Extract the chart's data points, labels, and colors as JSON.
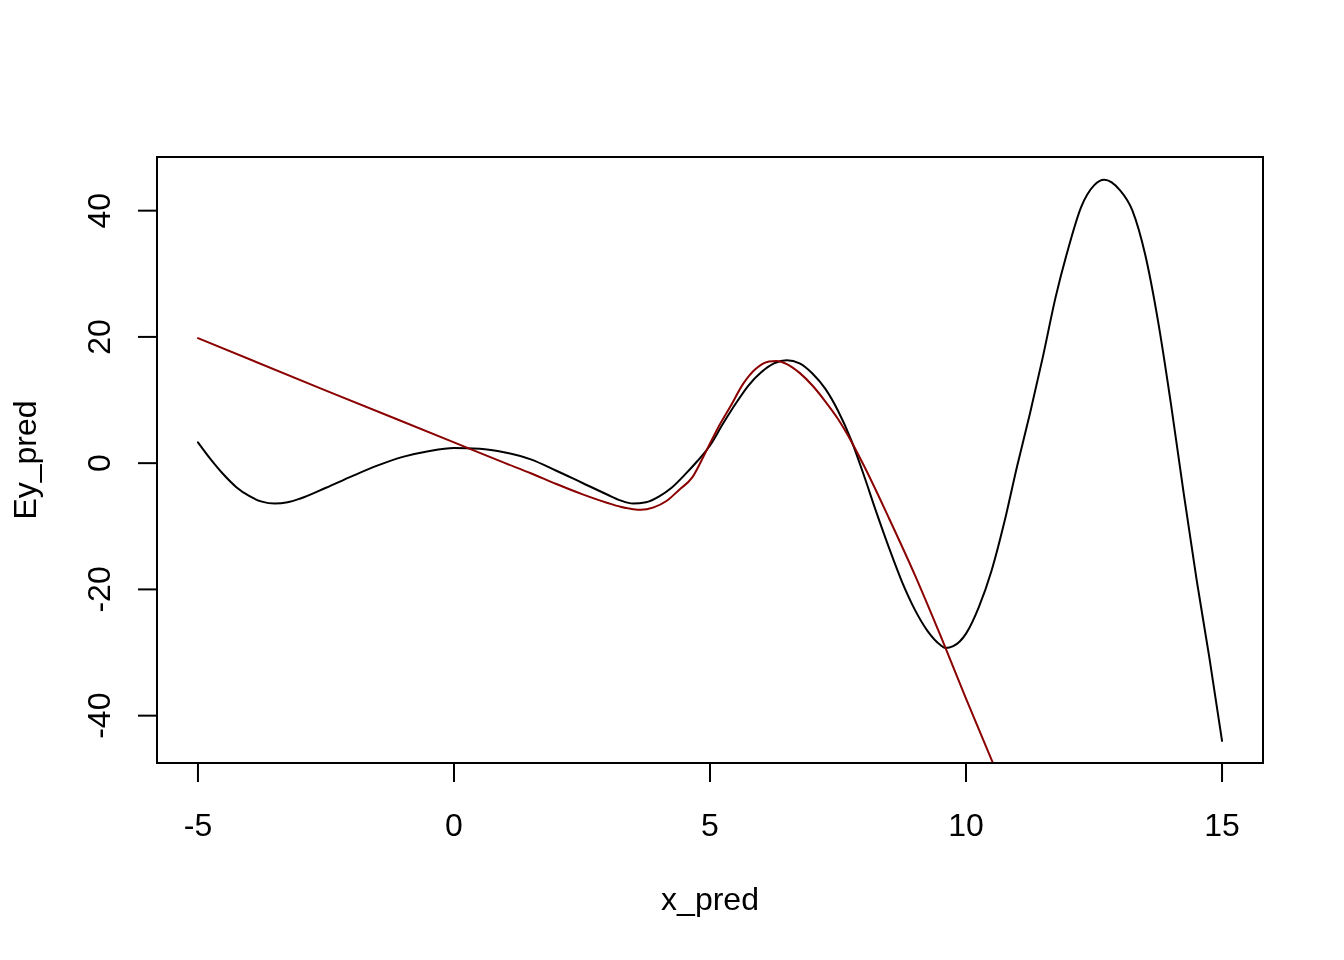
{
  "chart_data": {
    "type": "line",
    "xlabel": "x_pred",
    "ylabel": "Ey_pred",
    "xlim": [
      -5.8,
      15.8
    ],
    "ylim": [
      -47.5,
      48.5
    ],
    "xticks": [
      -5,
      0,
      5,
      10,
      15
    ],
    "yticks": [
      -40,
      -20,
      0,
      20,
      40
    ],
    "series": [
      {
        "color": "#000000",
        "x": [
          -5,
          -4.75,
          -4.5,
          -4.25,
          -4,
          -3.75,
          -3.5,
          -3.25,
          -3,
          -2.5,
          -2,
          -1.5,
          -1,
          -0.5,
          0,
          0.5,
          1,
          1.5,
          2,
          2.5,
          3,
          3.25,
          3.5,
          3.75,
          4,
          4.25,
          4.5,
          4.75,
          5,
          5.25,
          5.5,
          5.75,
          6,
          6.25,
          6.5,
          6.75,
          7,
          7.25,
          7.5,
          7.75,
          8,
          8.25,
          8.5,
          8.75,
          9,
          9.25,
          9.5,
          9.6,
          9.75,
          10,
          10.25,
          10.5,
          10.75,
          11,
          11.25,
          11.5,
          11.75,
          12,
          12.25,
          12.5,
          12.7,
          13,
          13.25,
          13.5,
          13.75,
          14,
          14.25,
          14.5,
          14.75,
          15
        ],
        "values": [
          3.3,
          0.6,
          -1.8,
          -3.8,
          -5.2,
          -6.1,
          -6.4,
          -6.2,
          -5.6,
          -3.9,
          -2.1,
          -0.4,
          1.0,
          1.9,
          2.4,
          2.3,
          1.7,
          0.6,
          -1.2,
          -3.1,
          -5.0,
          -5.9,
          -6.4,
          -6.2,
          -5.3,
          -3.9,
          -1.9,
          0.3,
          2.8,
          6.2,
          9.4,
          12.3,
          14.4,
          15.8,
          16.3,
          15.8,
          14.2,
          11.8,
          8.3,
          3.8,
          -1.8,
          -7.8,
          -13.5,
          -18.8,
          -23.2,
          -26.6,
          -28.8,
          -29.3,
          -29.0,
          -27.0,
          -22.8,
          -17.0,
          -9.3,
          -0.4,
          7.9,
          16.8,
          26.3,
          34.1,
          40.6,
          44.0,
          44.9,
          43.3,
          40.0,
          33.0,
          22.5,
          9.5,
          -4.7,
          -18.3,
          -30.7,
          -44.0
        ]
      },
      {
        "color": "#8b0000",
        "x": [
          -5,
          -2.5,
          0,
          1,
          1.5,
          2,
          2.5,
          3,
          3.25,
          3.5,
          3.65,
          3.9,
          4.15,
          4.4,
          4.65,
          4.9,
          5.15,
          5.4,
          5.65,
          5.9,
          6.15,
          6.3,
          6.5,
          6.75,
          7,
          7.25,
          7.5,
          7.75,
          8,
          8.5,
          9,
          9.5,
          10,
          10.52
        ],
        "values": [
          19.8,
          11.5,
          3.3,
          0.0,
          -1.6,
          -3.3,
          -4.9,
          -6.3,
          -6.9,
          -7.3,
          -7.4,
          -7.0,
          -6.0,
          -4.2,
          -2.3,
          1.5,
          5.5,
          9.0,
          12.6,
          15.0,
          16.1,
          16.2,
          15.7,
          14.3,
          12.3,
          9.8,
          7.0,
          3.6,
          -0.3,
          -8.8,
          -17.7,
          -27.3,
          -37.3,
          -47.4
        ]
      }
    ]
  }
}
